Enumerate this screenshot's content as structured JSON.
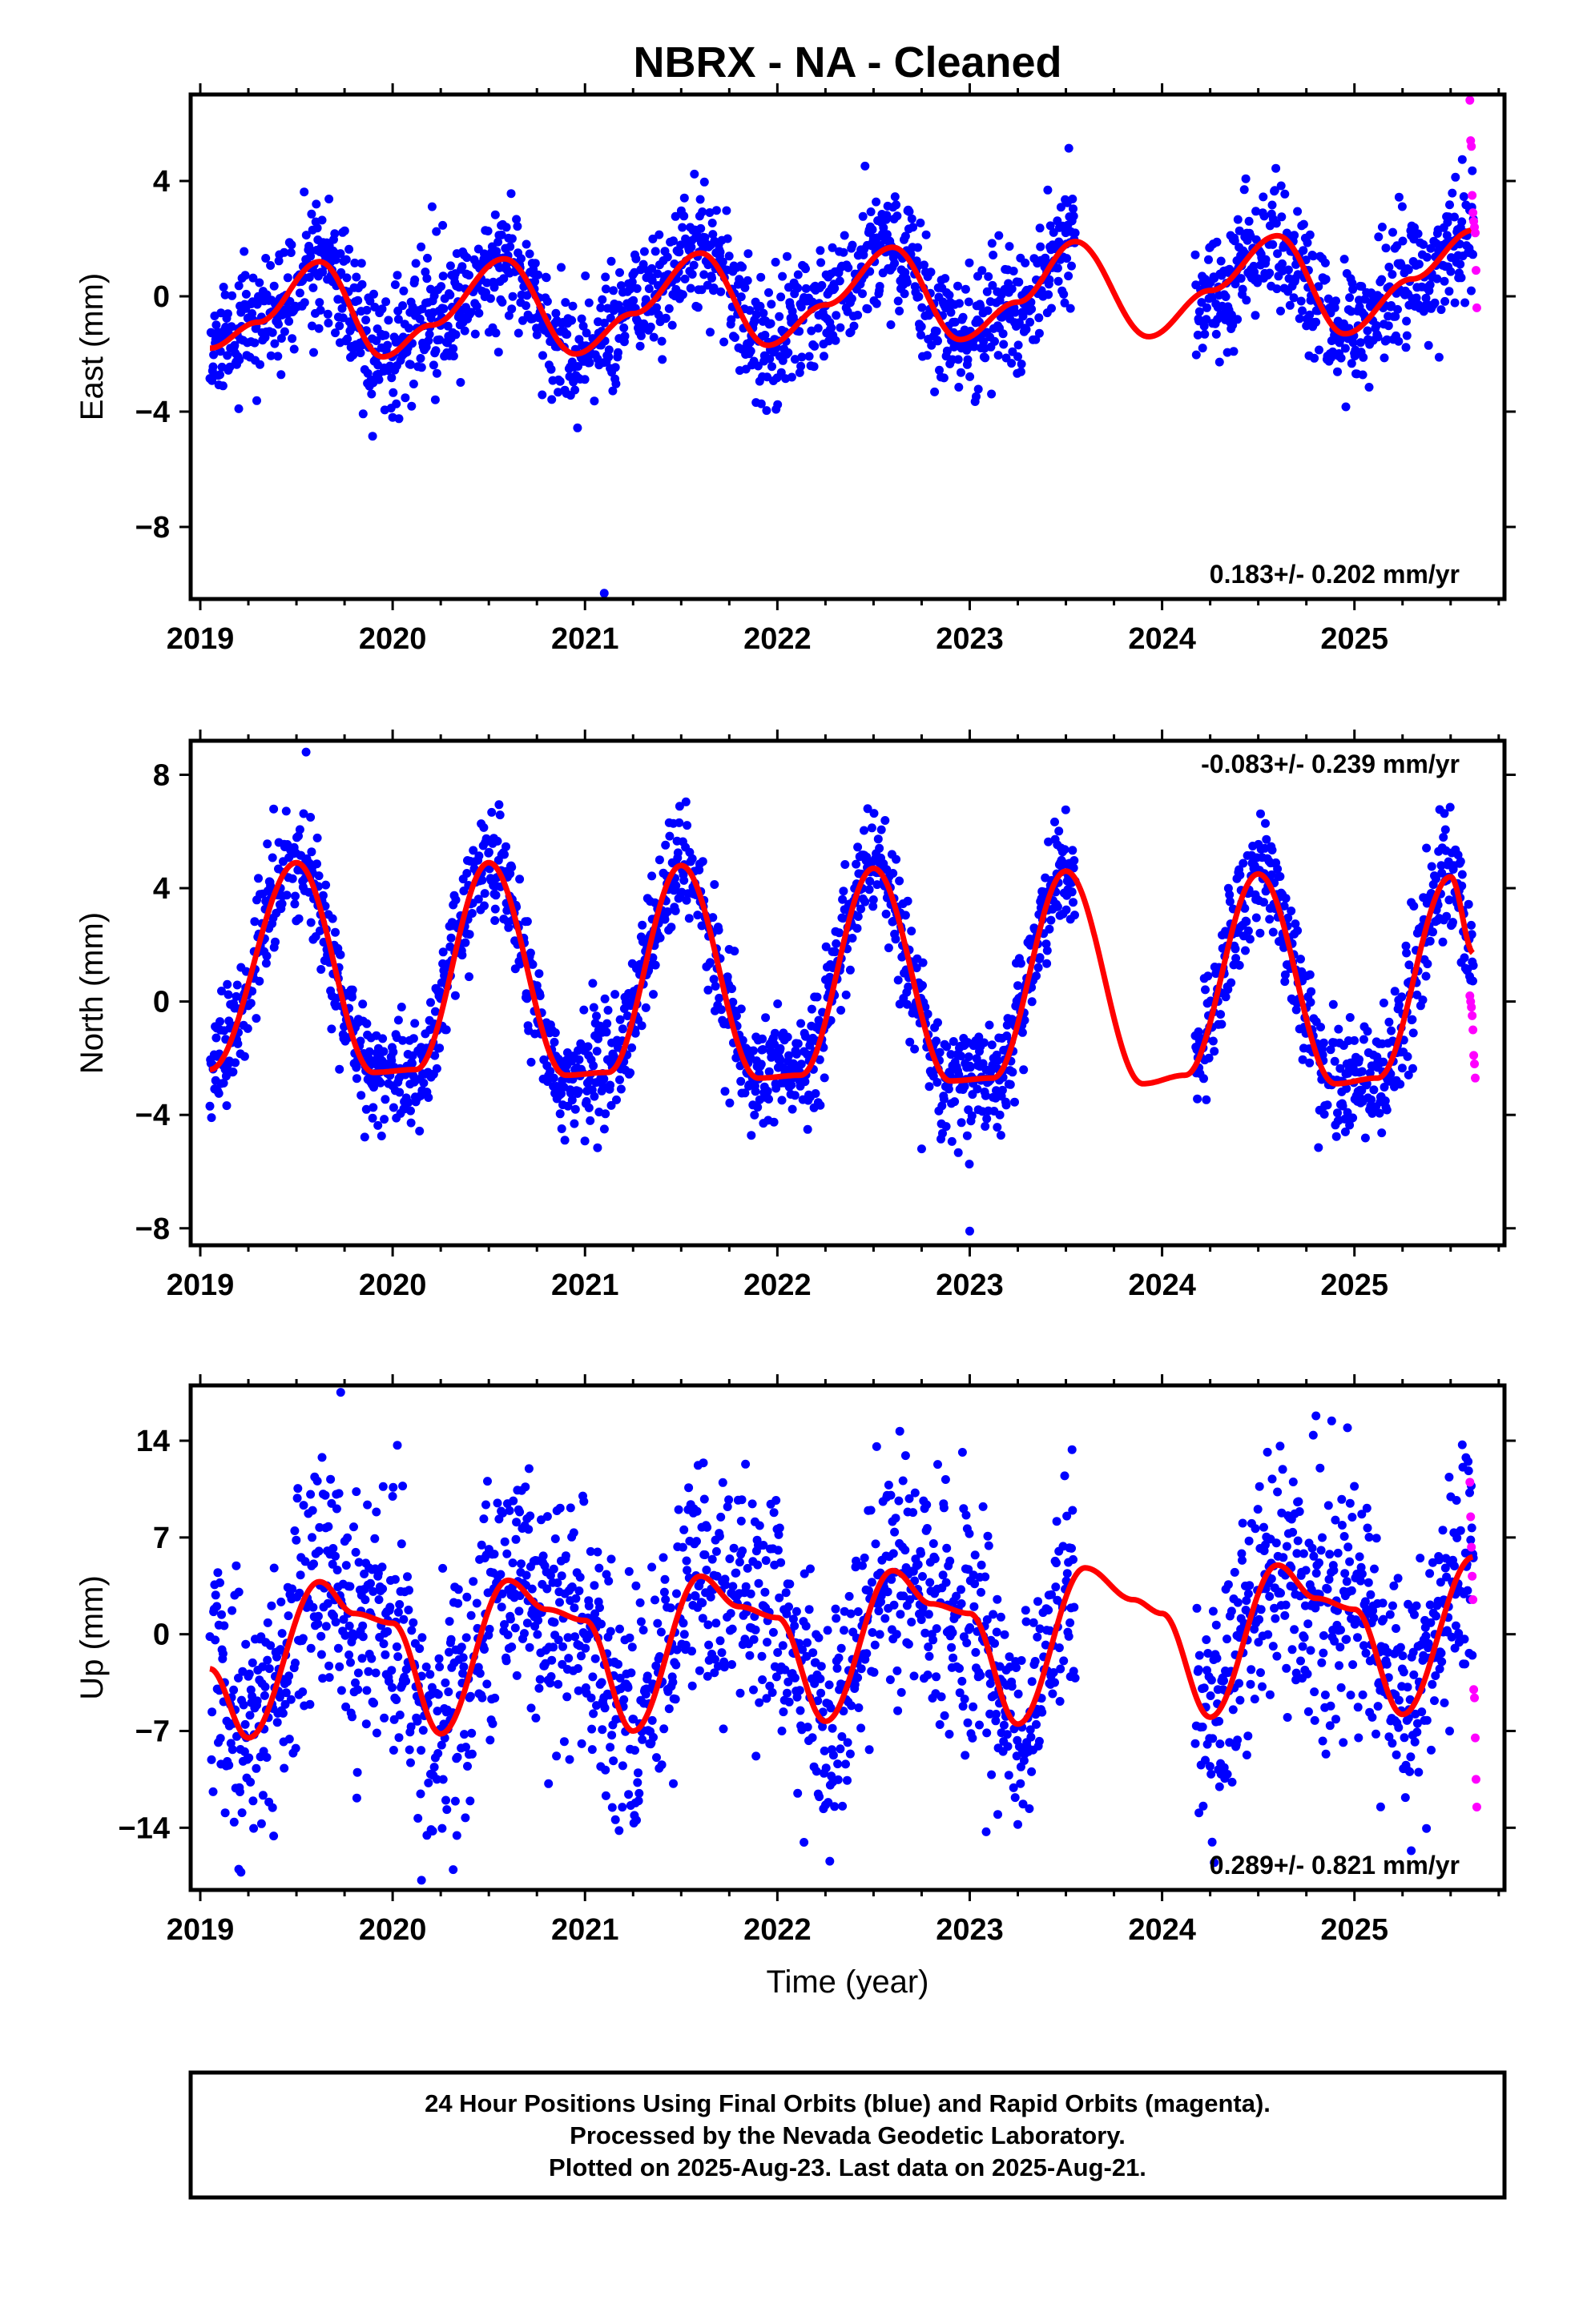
{
  "title": "NBRX  - NA - Cleaned",
  "footer": {
    "lines": [
      "24 Hour Positions Using Final Orbits (blue) and Rapid Orbits (magenta).",
      "Processed by the Nevada Geodetic Laboratory.",
      "Plotted on 2025-Aug-23. Last data on 2025-Aug-21."
    ]
  },
  "colors": {
    "final": "#0000ff",
    "rapid": "#ff00ff",
    "model": "#ff0000"
  },
  "chart_data": [
    {
      "type": "scatter",
      "component": "east",
      "ylabel": "East (mm)",
      "xlabel": "",
      "xlim": [
        2018.95,
        2025.78
      ],
      "ylim": [
        -10.5,
        7.0
      ],
      "yticks": [
        4,
        0,
        -4,
        -8
      ],
      "ytick_labels": [
        "4",
        "0",
        "−4",
        "−8"
      ],
      "xticks": [
        2019,
        2020,
        2021,
        2022,
        2023,
        2024,
        2025
      ],
      "rate_text": "0.183+/- 0.202 mm/yr",
      "rate_position": "bottom-right",
      "model": {
        "amplitude": 1.5,
        "phase_peak": 2019.62,
        "curve": [
          [
            2019.05,
            -1.8
          ],
          [
            2019.3,
            -0.9
          ],
          [
            2019.62,
            1.2
          ],
          [
            2019.95,
            -2.1
          ],
          [
            2020.2,
            -1.0
          ],
          [
            2020.58,
            1.3
          ],
          [
            2020.95,
            -2.0
          ],
          [
            2021.25,
            -0.6
          ],
          [
            2021.6,
            1.5
          ],
          [
            2021.95,
            -1.7
          ],
          [
            2022.25,
            -0.3
          ],
          [
            2022.6,
            1.7
          ],
          [
            2022.95,
            -1.5
          ],
          [
            2023.25,
            -0.2
          ],
          [
            2023.55,
            1.9
          ],
          [
            2023.93,
            -1.4
          ],
          [
            2024.25,
            0.2
          ],
          [
            2024.6,
            2.1
          ],
          [
            2024.95,
            -1.3
          ],
          [
            2025.3,
            0.6
          ],
          [
            2025.62,
            2.3
          ]
        ]
      },
      "final_series": {
        "start": 2019.05,
        "end": 2025.62,
        "gaps": [
          [
            2023.55,
            2024.17
          ]
        ],
        "scatter": 1.1,
        "seed": 11
      },
      "rapid_points": {
        "x": [
          2025.6,
          2025.604,
          2025.608,
          2025.612,
          2025.616,
          2025.62,
          2025.624,
          2025.628,
          2025.632,
          2025.636
        ],
        "y": [
          6.8,
          5.4,
          5.2,
          3.5,
          2.9,
          2.6,
          2.4,
          2.2,
          0.9,
          -0.4
        ]
      },
      "outliers": {
        "x": [
          2021.1,
          2020.0,
          2019.2
        ],
        "y": [
          -10.3,
          -4.2,
          -3.9
        ]
      }
    },
    {
      "type": "scatter",
      "component": "north",
      "ylabel": "North (mm)",
      "xlabel": "",
      "xlim": [
        2018.95,
        2025.78
      ],
      "ylim": [
        -8.6,
        9.2
      ],
      "yticks": [
        8,
        4,
        0,
        -4,
        -8
      ],
      "ytick_labels": [
        "8",
        "4",
        "0",
        "−4",
        "−8"
      ],
      "xticks": [
        2019,
        2020,
        2021,
        2022,
        2023,
        2024,
        2025
      ],
      "rate_text": "-0.083+/- 0.239 mm/yr",
      "rate_position": "top-right",
      "model": {
        "amplitude": 3.7,
        "phase_peak": 2019.5,
        "curve": [
          [
            2019.05,
            -2.4
          ],
          [
            2019.5,
            4.9
          ],
          [
            2019.9,
            -2.5
          ],
          [
            2020.12,
            -2.4
          ],
          [
            2020.5,
            4.9
          ],
          [
            2020.9,
            -2.6
          ],
          [
            2021.12,
            -2.5
          ],
          [
            2021.5,
            4.8
          ],
          [
            2021.9,
            -2.7
          ],
          [
            2022.12,
            -2.6
          ],
          [
            2022.5,
            4.7
          ],
          [
            2022.9,
            -2.8
          ],
          [
            2023.12,
            -2.7
          ],
          [
            2023.5,
            4.6
          ],
          [
            2023.9,
            -2.9
          ],
          [
            2024.12,
            -2.6
          ],
          [
            2024.5,
            4.5
          ],
          [
            2024.9,
            -2.9
          ],
          [
            2025.12,
            -2.7
          ],
          [
            2025.5,
            4.4
          ],
          [
            2025.62,
            1.7
          ]
        ]
      },
      "final_series": {
        "start": 2019.05,
        "end": 2025.62,
        "gaps": [
          [
            2023.55,
            2024.17
          ]
        ],
        "scatter": 1.0,
        "seed": 23
      },
      "rapid_points": {
        "x": [
          2025.6,
          2025.604,
          2025.608,
          2025.612,
          2025.616,
          2025.62,
          2025.624,
          2025.628
        ],
        "y": [
          0.2,
          0.0,
          -0.2,
          -0.5,
          -1.0,
          -1.9,
          -2.2,
          -2.7
        ]
      },
      "outliers": {
        "x": [
          2019.55,
          2023.0,
          2022.75
        ],
        "y": [
          8.8,
          -8.1,
          -5.2
        ]
      }
    },
    {
      "type": "scatter",
      "component": "up",
      "ylabel": "Up (mm)",
      "xlabel": "Time (year)",
      "xlim": [
        2018.95,
        2025.78
      ],
      "ylim": [
        -18.5,
        18.0
      ],
      "yticks": [
        14,
        7,
        0,
        -7,
        -14
      ],
      "ytick_labels": [
        "14",
        "7",
        "0",
        "−7",
        "−14"
      ],
      "xticks": [
        2019,
        2020,
        2021,
        2022,
        2023,
        2024,
        2025
      ],
      "rate_text": "0.289+/- 0.821 mm/yr",
      "rate_position": "bottom-right",
      "model": {
        "amplitude": 5.5,
        "phase_peak": 2019.62,
        "curve": [
          [
            2019.05,
            -2.5
          ],
          [
            2019.25,
            -7.5
          ],
          [
            2019.62,
            3.8
          ],
          [
            2019.8,
            1.5
          ],
          [
            2020.0,
            0.8
          ],
          [
            2020.25,
            -7.2
          ],
          [
            2020.6,
            3.9
          ],
          [
            2020.8,
            1.8
          ],
          [
            2021.0,
            1.0
          ],
          [
            2021.25,
            -7.0
          ],
          [
            2021.6,
            4.2
          ],
          [
            2021.8,
            2.0
          ],
          [
            2022.0,
            1.2
          ],
          [
            2022.25,
            -6.3
          ],
          [
            2022.6,
            4.6
          ],
          [
            2022.8,
            2.2
          ],
          [
            2023.0,
            1.5
          ],
          [
            2023.25,
            -6.5
          ],
          [
            2023.6,
            4.8
          ],
          [
            2023.85,
            2.5
          ],
          [
            2024.0,
            1.5
          ],
          [
            2024.25,
            -6.0
          ],
          [
            2024.6,
            5.0
          ],
          [
            2024.8,
            2.6
          ],
          [
            2025.0,
            1.8
          ],
          [
            2025.25,
            -5.8
          ],
          [
            2025.62,
            5.6
          ]
        ]
      },
      "final_series": {
        "start": 2019.05,
        "end": 2025.62,
        "gaps": [
          [
            2023.55,
            2024.17
          ]
        ],
        "scatter": 4.3,
        "seed": 37
      },
      "rapid_points": {
        "x": [
          2025.6,
          2025.604,
          2025.608,
          2025.612,
          2025.616,
          2025.62,
          2025.624,
          2025.628,
          2025.632,
          2025.636
        ],
        "y": [
          11.0,
          8.5,
          6.3,
          4.2,
          2.5,
          -4.0,
          -4.6,
          -7.5,
          -10.5,
          -12.5
        ]
      },
      "outliers": {
        "x": [
          2019.73,
          2020.15,
          2024.8,
          2019.2
        ],
        "y": [
          17.5,
          -17.8,
          15.8,
          -17.0
        ]
      }
    }
  ]
}
